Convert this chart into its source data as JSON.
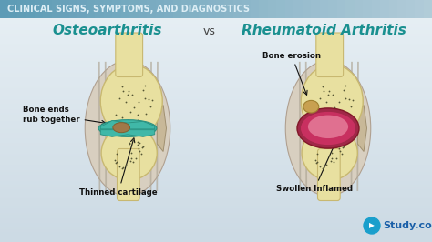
{
  "title_banner": "CLINICAL SIGNS, SYMPTOMS, AND DIAGNOSTICS",
  "title_banner_bg_top": "#8ab8cc",
  "title_banner_bg_bot": "#c8dde8",
  "title_banner_text_color": "#e8f4f8",
  "bg_color": "#d8e8ee",
  "bg_gradient_top": "#c0d4de",
  "bg_gradient_bot": "#eaf2f6",
  "left_title": "Osteoarthritis",
  "vs_text": "vs",
  "right_title": "Rheumatoid Arthritis",
  "title_color": "#1a9090",
  "title_fontsize": 11,
  "vs_fontsize": 9,
  "bone_color": "#e8e0a0",
  "bone_edge": "#c8b870",
  "bone_dot": "#555533",
  "ligament_color": "#b0a898",
  "osteo_cartilage": "#40b8a8",
  "osteo_worn": "#a07848",
  "ra_synovium": "#c83060",
  "ra_synovium2": "#e06080",
  "ra_erosion": "#d0a050",
  "logo_text": "Study.com",
  "logo_color": "#1a5fa8",
  "logo_circle_color": "#1a9fcc"
}
